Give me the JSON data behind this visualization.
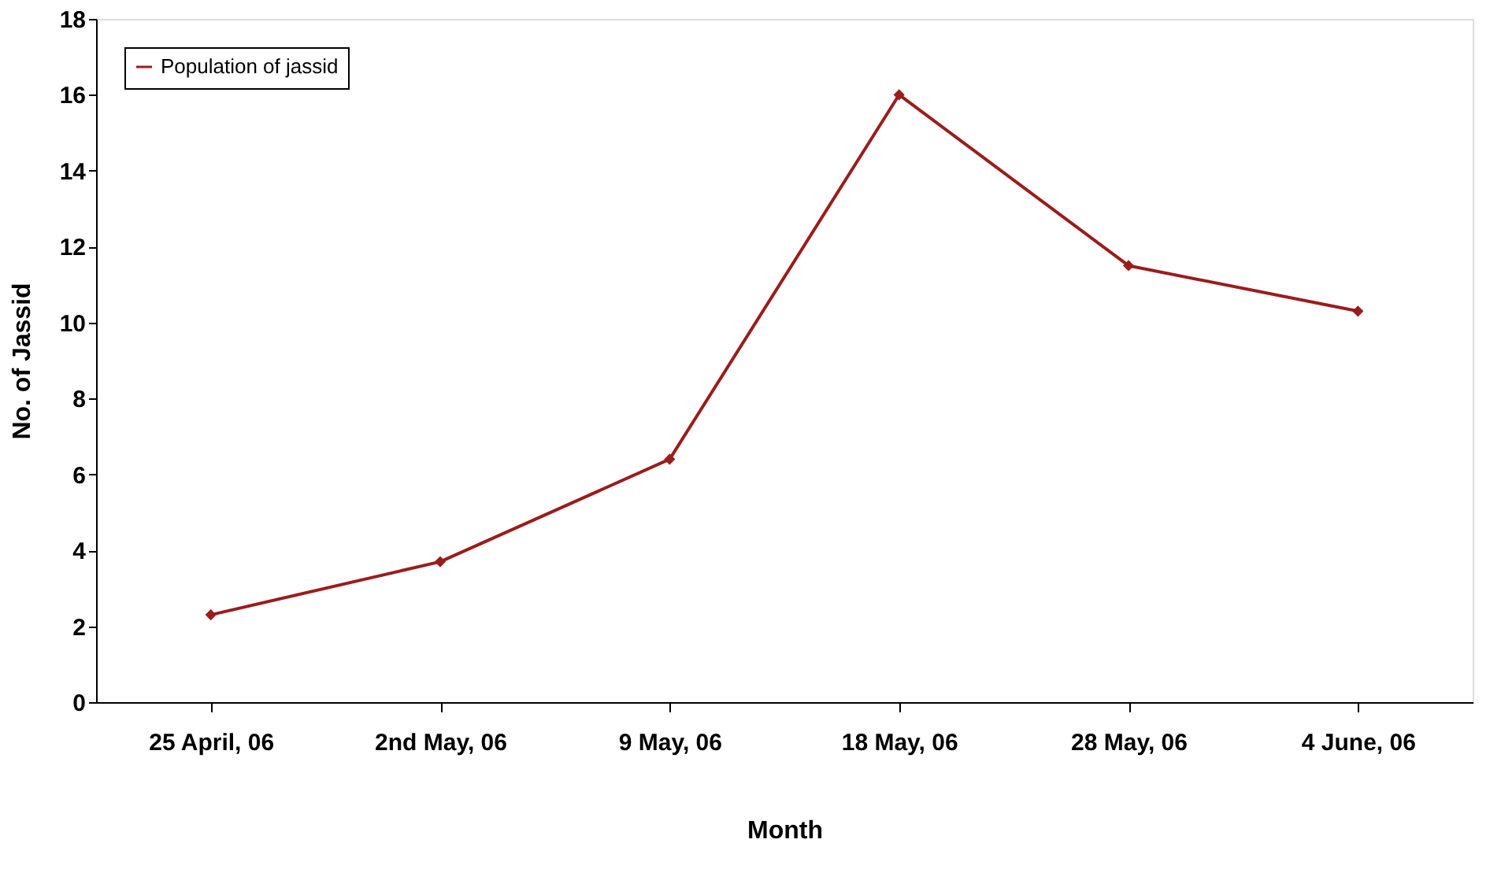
{
  "chart_data": {
    "type": "line",
    "xlabel": "Month",
    "ylabel": "No. of Jassid",
    "categories": [
      "25 April, 06",
      "2nd May, 06",
      "9 May, 06",
      "18 May, 06",
      "28 May, 06",
      "4 June, 06"
    ],
    "series": [
      {
        "name": "Population of jassid",
        "color": "#9b1c1c",
        "values": [
          2.3,
          3.7,
          6.4,
          16,
          11.5,
          10.3
        ]
      }
    ],
    "ylim": [
      0,
      18
    ],
    "yticks": [
      0,
      2,
      4,
      6,
      8,
      10,
      12,
      14,
      16,
      18
    ],
    "grid": false,
    "legend": "top left",
    "marker": "diamond",
    "line_style": "solid"
  }
}
